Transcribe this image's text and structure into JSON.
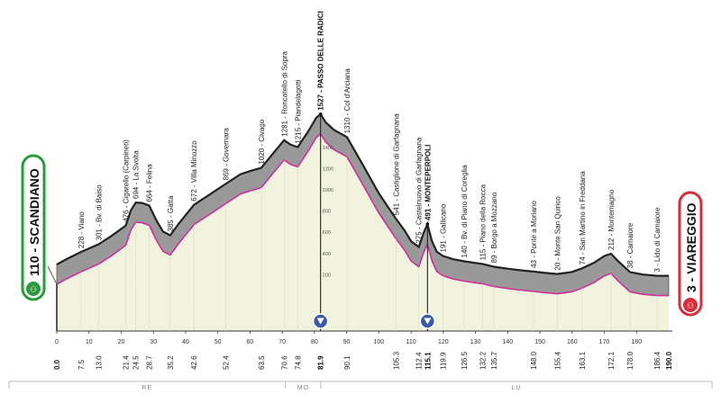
{
  "start": {
    "label": "110 - SCANDIANO",
    "color": "#2b9a3b"
  },
  "finish": {
    "label": "3 - VIAREGGIO",
    "color": "#d62e3a"
  },
  "colors": {
    "profile_fill": "#999999",
    "profile_dark": "#555555",
    "area_fill": "#f1f3df",
    "gradient_line": "#cc2f9a",
    "km_marker": "#3a5aa8"
  },
  "regions": [
    {
      "name": "RE",
      "from_km": 0,
      "to_km": 71
    },
    {
      "name": "MO",
      "from_km": 71,
      "to_km": 82
    },
    {
      "name": "LU",
      "from_km": 82,
      "to_km": 190
    }
  ],
  "kms_dist": [
    {
      "km": 0,
      "label": "0.0",
      "bold": true
    },
    {
      "km": 7.5,
      "label": "7.5"
    },
    {
      "km": 13.0,
      "label": "13.0"
    },
    {
      "km": 21.4,
      "label": "21.4"
    },
    {
      "km": 24.5,
      "label": "24.5"
    },
    {
      "km": 28.7,
      "label": "28.7"
    },
    {
      "km": 35.2,
      "label": "35.2"
    },
    {
      "km": 42.6,
      "label": "42.6"
    },
    {
      "km": 52.4,
      "label": "52.4"
    },
    {
      "km": 63.5,
      "label": "63.5"
    },
    {
      "km": 70.6,
      "label": "70.6"
    },
    {
      "km": 74.8,
      "label": "74.8"
    },
    {
      "km": 81.9,
      "label": "81.9",
      "bold": true
    },
    {
      "km": 90.1,
      "label": "90.1"
    },
    {
      "km": 105.3,
      "label": "105.3"
    },
    {
      "km": 112.4,
      "label": "112.4"
    },
    {
      "km": 115.1,
      "label": "115.1",
      "bold": true
    },
    {
      "km": 119.9,
      "label": "119.9"
    },
    {
      "km": 126.5,
      "label": "126.5"
    },
    {
      "km": 132.2,
      "label": "132.2"
    },
    {
      "km": 135.7,
      "label": "135.7"
    },
    {
      "km": 148.0,
      "label": "148.0"
    },
    {
      "km": 155.4,
      "label": "155.4"
    },
    {
      "km": 163.1,
      "label": "163.1"
    },
    {
      "km": 172.1,
      "label": "172.1"
    },
    {
      "km": 178.0,
      "label": "178.0"
    },
    {
      "km": 186.4,
      "label": "186.4"
    },
    {
      "km": 190.0,
      "label": "190.0",
      "bold": true
    }
  ],
  "axis_ticks": [
    "0",
    "10",
    "20",
    "30",
    "40",
    "50",
    "60",
    "70",
    "80",
    "90",
    "100",
    "110",
    "120",
    "130",
    "140",
    "150",
    "160",
    "170",
    "180"
  ],
  "altitude_ticks": [
    "1400",
    "1200",
    "1000",
    "800",
    "600",
    "400",
    "200"
  ],
  "waypoints": [
    {
      "km": 7.5,
      "label": "228 - Viano"
    },
    {
      "km": 13.0,
      "label": "301 - Bv. di Baiso"
    },
    {
      "km": 21.4,
      "label": "476 - Cigarello (Carpineti)"
    },
    {
      "km": 24.5,
      "label": "694 - La Svolta"
    },
    {
      "km": 28.7,
      "label": "664 - Felina"
    },
    {
      "km": 35.2,
      "label": "385 - Gatta"
    },
    {
      "km": 42.6,
      "label": "672 - Villa Minozzo"
    },
    {
      "km": 52.4,
      "label": "869 - Governara"
    },
    {
      "km": 63.5,
      "label": "1020 - Civago"
    },
    {
      "km": 70.6,
      "label": "1281 - Roncatello di Sopra"
    },
    {
      "km": 74.8,
      "label": "1215 - Piandelagotti"
    },
    {
      "km": 81.9,
      "label": "1527 - PASSO DELLE RADICI",
      "bold": true
    },
    {
      "km": 90.1,
      "label": "1310 - Col d'Arciana"
    },
    {
      "km": 105.3,
      "label": "541 - Castiglione di Garfagnana"
    },
    {
      "km": 112.4,
      "label": "275 - Castelnuovo di Garfagnana"
    },
    {
      "km": 115.1,
      "label": "491 - MONTEPERPOLI",
      "bold": true
    },
    {
      "km": 119.9,
      "label": "191 - Gallicano"
    },
    {
      "km": 126.5,
      "label": "140 - Bv. di Piano di Coreglia"
    },
    {
      "km": 132.2,
      "label": "115 - Piano della Rocca"
    },
    {
      "km": 135.7,
      "label": "89 - Borgo a Mozzano"
    },
    {
      "km": 148.0,
      "label": "43 - Ponte a Moriano"
    },
    {
      "km": 155.4,
      "label": "20 - Monte San Quirico"
    },
    {
      "km": 163.1,
      "label": "74 - San Martino in Freddana"
    },
    {
      "km": 172.1,
      "label": "212 - Montemagno"
    },
    {
      "km": 178.0,
      "label": "38 - Camaiore"
    },
    {
      "km": 186.4,
      "label": "3 - Lido di Camaiore"
    }
  ],
  "profile": [
    [
      0,
      110
    ],
    [
      3,
      160
    ],
    [
      7.5,
      228
    ],
    [
      10,
      260
    ],
    [
      13,
      301
    ],
    [
      17,
      380
    ],
    [
      21.4,
      476
    ],
    [
      23,
      620
    ],
    [
      24.5,
      694
    ],
    [
      26.5,
      690
    ],
    [
      28.7,
      664
    ],
    [
      31,
      520
    ],
    [
      33,
      420
    ],
    [
      35.2,
      385
    ],
    [
      38,
      500
    ],
    [
      42.6,
      672
    ],
    [
      47,
      760
    ],
    [
      52.4,
      869
    ],
    [
      57,
      960
    ],
    [
      60,
      990
    ],
    [
      63.5,
      1020
    ],
    [
      67,
      1150
    ],
    [
      70.6,
      1281
    ],
    [
      72.5,
      1240
    ],
    [
      74.8,
      1215
    ],
    [
      78,
      1360
    ],
    [
      80.5,
      1490
    ],
    [
      81.9,
      1527
    ],
    [
      83.5,
      1450
    ],
    [
      86,
      1380
    ],
    [
      90.1,
      1310
    ],
    [
      95,
      1050
    ],
    [
      100,
      780
    ],
    [
      105.3,
      541
    ],
    [
      108,
      430
    ],
    [
      110,
      330
    ],
    [
      112.4,
      275
    ],
    [
      113.8,
      400
    ],
    [
      115.1,
      491
    ],
    [
      116.5,
      330
    ],
    [
      118,
      230
    ],
    [
      119.9,
      191
    ],
    [
      123,
      160
    ],
    [
      126.5,
      140
    ],
    [
      130,
      125
    ],
    [
      132.2,
      115
    ],
    [
      135.7,
      89
    ],
    [
      140,
      70
    ],
    [
      144,
      55
    ],
    [
      148,
      43
    ],
    [
      152,
      30
    ],
    [
      155.4,
      20
    ],
    [
      160,
      40
    ],
    [
      163.1,
      74
    ],
    [
      167,
      130
    ],
    [
      170,
      190
    ],
    [
      172.1,
      212
    ],
    [
      174,
      150
    ],
    [
      178,
      38
    ],
    [
      182,
      15
    ],
    [
      186.4,
      3
    ],
    [
      190,
      3
    ]
  ]
}
